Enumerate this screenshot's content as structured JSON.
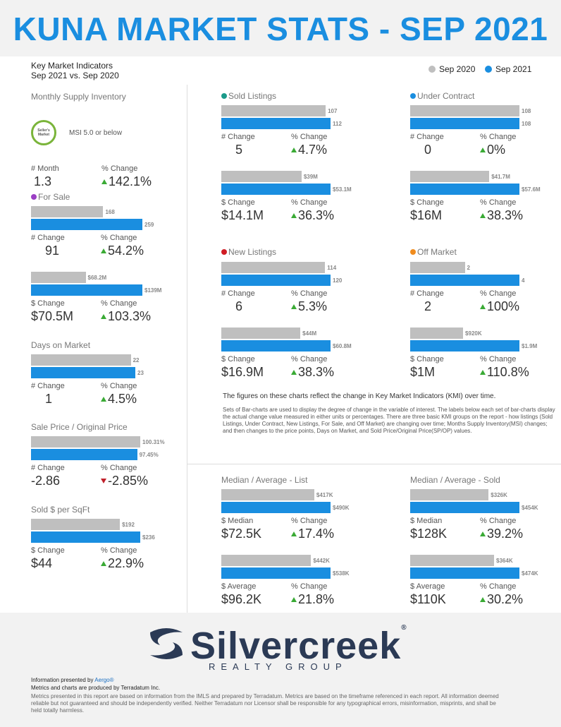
{
  "title": "KUNA MARKET STATS - SEP 2021",
  "kmi": {
    "line1": "Key Market Indicators",
    "line2": "Sep 2021 vs. Sep 2020"
  },
  "legend": {
    "prev": "Sep 2020",
    "curr": "Sep 2021",
    "prev_color": "#bfbfbf",
    "curr_color": "#1a8ee0"
  },
  "left": {
    "msi": {
      "title": "Monthly Supply Inventory",
      "badge": "Seller's Market",
      "desc": "MSI 5.0 or below",
      "l1": "# Month",
      "l2": "% Change",
      "v1": "1.3",
      "v2": "142.1%"
    },
    "for_sale": {
      "title": "For Sale",
      "dot": "#9b3fc4",
      "units": {
        "prev": 168,
        "curr": 259,
        "prev_label": "168",
        "curr_label": "259",
        "l1": "# Change",
        "l2": "% Change",
        "v1": "91",
        "v2": "54.2%"
      },
      "dollars": {
        "prev": 68.2,
        "curr": 139,
        "prev_label": "$68.2M",
        "curr_label": "$139M",
        "l1": "$ Change",
        "l2": "% Change",
        "v1": "$70.5M",
        "v2": "103.3%"
      }
    },
    "dom": {
      "title": "Days on Market",
      "prev": 22,
      "curr": 23,
      "prev_label": "22",
      "curr_label": "23",
      "l1": "# Change",
      "l2": "% Change",
      "v1": "1",
      "v2": "4.5%"
    },
    "sp_op": {
      "title": "Sale Price / Original Price",
      "prev": 100.31,
      "curr": 97.45,
      "prev_label": "100.31%",
      "curr_label": "97.45%",
      "l1": "# Change",
      "l2": "% Change",
      "v1": "-2.86",
      "v2": "-2.85%"
    },
    "sqft": {
      "title": "Sold $ per SqFt",
      "prev": 192,
      "curr": 236,
      "prev_label": "$192",
      "curr_label": "$236",
      "l1": "$ Change",
      "l2": "% Change",
      "v1": "$44",
      "v2": "22.9%"
    }
  },
  "sold": {
    "title": "Sold Listings",
    "dot": "#1a9a8a",
    "units": {
      "prev": 107,
      "curr": 112,
      "prev_label": "107",
      "curr_label": "112",
      "l1": "# Change",
      "l2": "% Change",
      "v1": "5",
      "v2": "4.7%"
    },
    "dollars": {
      "prev": 39,
      "curr": 53.1,
      "prev_label": "$39M",
      "curr_label": "$53.1M",
      "l1": "$ Change",
      "l2": "% Change",
      "v1": "$14.1M",
      "v2": "36.3%"
    }
  },
  "under": {
    "title": "Under Contract",
    "dot": "#1a8ee0",
    "units": {
      "prev": 108,
      "curr": 108,
      "prev_label": "108",
      "curr_label": "108",
      "l1": "# Change",
      "l2": "% Change",
      "v1": "0",
      "v2": "0%"
    },
    "dollars": {
      "prev": 41.7,
      "curr": 57.6,
      "prev_label": "$41.7M",
      "curr_label": "$57.6M",
      "l1": "$ Change",
      "l2": "% Change",
      "v1": "$16M",
      "v2": "38.3%"
    }
  },
  "newl": {
    "title": "New Listings",
    "dot": "#d01c24",
    "units": {
      "prev": 114,
      "curr": 120,
      "prev_label": "114",
      "curr_label": "120",
      "l1": "# Change",
      "l2": "% Change",
      "v1": "6",
      "v2": "5.3%"
    },
    "dollars": {
      "prev": 44,
      "curr": 60.8,
      "prev_label": "$44M",
      "curr_label": "$60.8M",
      "l1": "$ Change",
      "l2": "% Change",
      "v1": "$16.9M",
      "v2": "38.3%"
    }
  },
  "off": {
    "title": "Off Market",
    "dot": "#f08c1e",
    "units": {
      "prev": 2,
      "curr": 4,
      "prev_label": "2",
      "curr_label": "4",
      "l1": "# Change",
      "l2": "% Change",
      "v1": "2",
      "v2": "100%"
    },
    "dollars": {
      "prev": 920,
      "curr": 1900,
      "prev_label": "$920K",
      "curr_label": "$1.9M",
      "l1": "$ Change",
      "l2": "% Change",
      "v1": "$1M",
      "v2": "110.8%"
    }
  },
  "note": {
    "line1": "The figures on these charts reflect the change in Key Market Indicators (KMI) over time.",
    "line2": "Sets of Bar-charts are used to display the degree of change in the variable of interest. The labels below each set of bar-charts display the actual change value measured in either units or percentages. There are three basic KMI groups on the report - how listings (Sold Listings, Under Contract, New Listings, For Sale, and Off Market) are changing over time; Months Supply Inventory(MSI) changes; and then changes to the price points, Days on Market, and Sold Price/Original Price(SP/OP) values."
  },
  "list": {
    "title": "Median / Average - List",
    "median": {
      "prev": 417,
      "curr": 490,
      "prev_label": "$417K",
      "curr_label": "$490K",
      "l1": "$ Median",
      "l2": "% Change",
      "v1": "$72.5K",
      "v2": "17.4%"
    },
    "average": {
      "prev": 442,
      "curr": 538,
      "prev_label": "$442K",
      "curr_label": "$538K",
      "l1": "$ Average",
      "l2": "% Change",
      "v1": "$96.2K",
      "v2": "21.8%"
    }
  },
  "soldp": {
    "title": "Median / Average - Sold",
    "median": {
      "prev": 326,
      "curr": 454,
      "prev_label": "$326K",
      "curr_label": "$454K",
      "l1": "$ Median",
      "l2": "% Change",
      "v1": "$128K",
      "v2": "39.2%"
    },
    "average": {
      "prev": 364,
      "curr": 474,
      "prev_label": "$364K",
      "curr_label": "$474K",
      "l1": "$ Average",
      "l2": "% Change",
      "v1": "$110K",
      "v2": "30.2%"
    }
  },
  "logo": {
    "name": "Silvercreek",
    "reg": "®",
    "sub": "REALTY GROUP"
  },
  "footer": {
    "presented_prefix": "Information presented by ",
    "presented_by": "Aergo®",
    "produced": "Metrics and charts are produced by Terradatum Inc.",
    "fine": "Metrics presented in this report are based on information from the IMLS and prepared by Terradatum. Metrics are based on the timeframe referenced in each report. All information deemed reliable but not guaranteed and should be independently verified. Neither Terradatum nor Licensor shall be responsible for any typographical errors, misinformation, misprints, and shall be held totally harmless."
  }
}
